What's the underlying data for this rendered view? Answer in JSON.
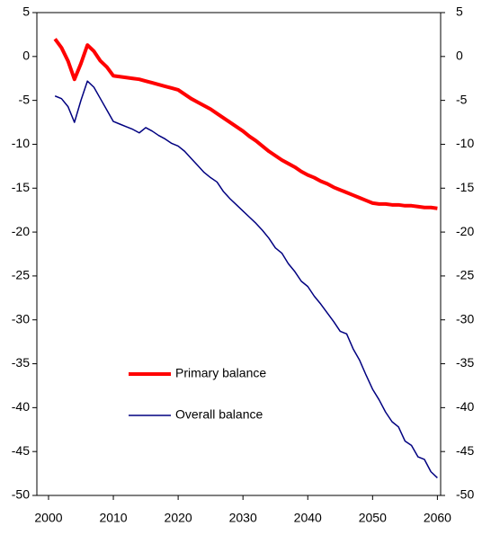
{
  "chart_data": {
    "type": "line",
    "x": [
      2001,
      2002,
      2003,
      2004,
      2005,
      2006,
      2007,
      2008,
      2009,
      2010,
      2011,
      2012,
      2013,
      2014,
      2015,
      2016,
      2017,
      2018,
      2019,
      2020,
      2021,
      2022,
      2023,
      2024,
      2025,
      2026,
      2027,
      2028,
      2029,
      2030,
      2031,
      2032,
      2033,
      2034,
      2035,
      2036,
      2037,
      2038,
      2039,
      2040,
      2041,
      2042,
      2043,
      2044,
      2045,
      2046,
      2047,
      2048,
      2049,
      2050,
      2051,
      2052,
      2053,
      2054,
      2055,
      2056,
      2057,
      2058,
      2059,
      2060
    ],
    "series": [
      {
        "name": "Primary balance",
        "color": "#ff0000",
        "width": 4,
        "values": [
          2.0,
          1.0,
          -0.5,
          -2.6,
          -0.8,
          1.3,
          0.6,
          -0.5,
          -1.2,
          -2.2,
          -2.3,
          -2.4,
          -2.5,
          -2.6,
          -2.8,
          -3.0,
          -3.2,
          -3.4,
          -3.6,
          -3.8,
          -4.3,
          -4.8,
          -5.2,
          -5.6,
          -6.0,
          -6.5,
          -7.0,
          -7.5,
          -8.0,
          -8.5,
          -9.1,
          -9.6,
          -10.2,
          -10.8,
          -11.3,
          -11.8,
          -12.2,
          -12.6,
          -13.1,
          -13.5,
          -13.8,
          -14.2,
          -14.5,
          -14.9,
          -15.2,
          -15.5,
          -15.8,
          -16.1,
          -16.4,
          -16.7,
          -16.8,
          -16.8,
          -16.9,
          -16.9,
          -17.0,
          -17.0,
          -17.1,
          -17.2,
          -17.2,
          -17.3
        ]
      },
      {
        "name": "Overall balance",
        "color": "#000080",
        "width": 1.5,
        "values": [
          -4.5,
          -4.8,
          -5.7,
          -7.5,
          -5.0,
          -2.8,
          -3.5,
          -4.8,
          -6.1,
          -7.4,
          -7.7,
          -8.0,
          -8.3,
          -8.7,
          -8.1,
          -8.5,
          -9.0,
          -9.4,
          -9.9,
          -10.2,
          -10.8,
          -11.6,
          -12.4,
          -13.2,
          -13.8,
          -14.3,
          -15.4,
          -16.2,
          -16.9,
          -17.6,
          -18.3,
          -19.0,
          -19.8,
          -20.7,
          -21.8,
          -22.4,
          -23.6,
          -24.5,
          -25.6,
          -26.2,
          -27.3,
          -28.2,
          -29.2,
          -30.2,
          -31.3,
          -31.6,
          -33.3,
          -34.6,
          -36.3,
          -37.9,
          -39.1,
          -40.5,
          -41.6,
          -42.2,
          -43.8,
          -44.3,
          -45.6,
          -45.9,
          -47.3,
          -48.0
        ]
      }
    ],
    "xlim": [
      1998.2,
      2060.5
    ],
    "xticks": [
      2000,
      2010,
      2020,
      2030,
      2040,
      2050,
      2060
    ],
    "ylim": [
      -50,
      5
    ],
    "yticks": [
      5,
      0,
      -5,
      -10,
      -15,
      -20,
      -25,
      -30,
      -35,
      -40,
      -45,
      -50
    ],
    "y2lim": [
      -50,
      5
    ],
    "y2ticks": [
      5,
      0,
      -5,
      -10,
      -15,
      -20,
      -25,
      -30,
      -35,
      -40,
      -45,
      -50
    ],
    "grid": false,
    "legend": "lower left"
  }
}
